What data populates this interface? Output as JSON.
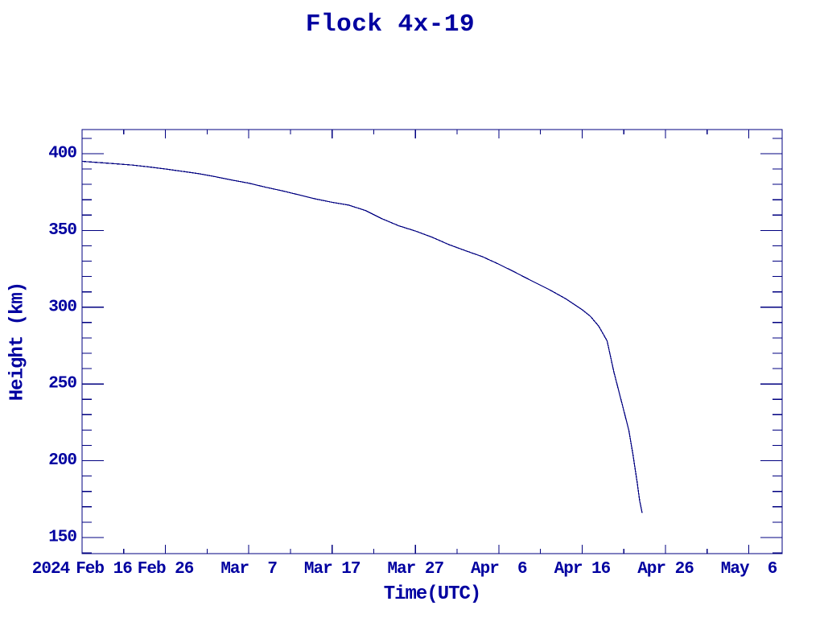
{
  "title": "Flock 4x-19",
  "colors": {
    "background": "#ffffff",
    "line": "#000080",
    "text": "#0000a0"
  },
  "chart_data": {
    "type": "line",
    "title": "Flock 4x-19",
    "xlabel": "Time(UTC)",
    "ylabel": "Height (km)",
    "year_label": "2024",
    "x_unit": "days since 2024 Feb 16 (UTC)",
    "x_range": [
      0,
      84
    ],
    "y_range": [
      139.5,
      415.7
    ],
    "grid": false,
    "legend": false,
    "x_major_ticks": [
      {
        "day": 0,
        "label": "Feb 16",
        "dx": 27
      },
      {
        "day": 10,
        "label": "Feb 26"
      },
      {
        "day": 20,
        "label": "Mar  7"
      },
      {
        "day": 30,
        "label": "Mar 17"
      },
      {
        "day": 40,
        "label": "Mar 27"
      },
      {
        "day": 50,
        "label": "Apr  6"
      },
      {
        "day": 60,
        "label": "Apr 16"
      },
      {
        "day": 70,
        "label": "Apr 26"
      },
      {
        "day": 80,
        "label": "May  6"
      }
    ],
    "x_minor_step_days": 5,
    "y_major_ticks": [
      {
        "km": 150,
        "label": "150"
      },
      {
        "km": 200,
        "label": "200"
      },
      {
        "km": 250,
        "label": "250"
      },
      {
        "km": 300,
        "label": "300"
      },
      {
        "km": 350,
        "label": "350"
      },
      {
        "km": 400,
        "label": "400"
      }
    ],
    "y_minor_step_km": 10,
    "series": [
      {
        "name": "Flock 4x-19 orbital height",
        "points_day_km": [
          [
            0,
            395.0
          ],
          [
            2,
            394.2
          ],
          [
            4,
            393.4
          ],
          [
            6,
            392.6
          ],
          [
            8,
            391.4
          ],
          [
            10,
            390.0
          ],
          [
            12,
            388.5
          ],
          [
            14,
            387.0
          ],
          [
            16,
            385.0
          ],
          [
            18,
            382.8
          ],
          [
            20,
            380.8
          ],
          [
            22,
            378.2
          ],
          [
            24,
            375.8
          ],
          [
            26,
            373.2
          ],
          [
            28,
            370.5
          ],
          [
            30,
            368.3
          ],
          [
            32,
            366.5
          ],
          [
            34,
            363.0
          ],
          [
            36,
            357.6
          ],
          [
            38,
            353.0
          ],
          [
            40,
            349.6
          ],
          [
            42,
            345.6
          ],
          [
            44,
            340.8
          ],
          [
            46,
            336.8
          ],
          [
            48,
            333.0
          ],
          [
            50,
            328.0
          ],
          [
            52,
            322.6
          ],
          [
            54,
            317.0
          ],
          [
            56,
            311.6
          ],
          [
            58,
            305.6
          ],
          [
            60,
            298.4
          ],
          [
            61,
            294.0
          ],
          [
            62,
            287.6
          ],
          [
            63,
            278.0
          ],
          [
            63.8,
            258.0
          ],
          [
            64.8,
            237.0
          ],
          [
            65.6,
            220.0
          ],
          [
            66.1,
            204.0
          ],
          [
            66.6,
            186.0
          ],
          [
            66.9,
            174.0
          ],
          [
            67.2,
            166.0
          ]
        ]
      }
    ]
  }
}
